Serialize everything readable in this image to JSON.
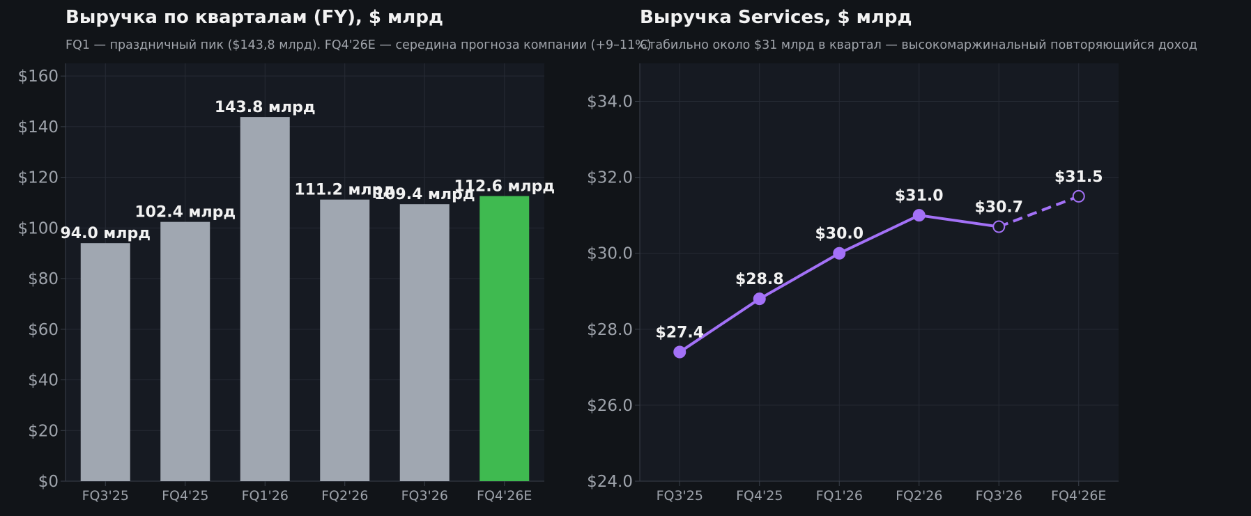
{
  "colors": {
    "background": "#111418",
    "plot_background": "#161a22",
    "grid": "#262b35",
    "axis_text": "#9ea3ab",
    "label_text": "#f2f2f2",
    "bar_default": "#a0a7b1",
    "bar_highlight": "#3fba50",
    "line": "#a371f7"
  },
  "chart_data": [
    {
      "type": "bar",
      "title": "Выручка по кварталам (FY), $ млрд",
      "subtitle": "FQ1 — праздничный пик ($143,8 млрд). FQ4'26E — середина прогноза компании (+9–11%)",
      "categories": [
        "FQ3'25",
        "FQ4'25",
        "FQ1'26",
        "FQ2'26",
        "FQ3'26",
        "FQ4'26E"
      ],
      "values": [
        94.0,
        102.4,
        143.8,
        111.2,
        109.4,
        112.6
      ],
      "data_labels": [
        "94.0 млрд",
        "102.4 млрд",
        "143.8 млрд",
        "111.2 млрд",
        "109.4 млрд",
        "112.6 млрд"
      ],
      "highlight_category": "FQ4'26E",
      "ylim": [
        0,
        165
      ],
      "yticks": [
        0,
        20,
        40,
        60,
        80,
        100,
        120,
        140,
        160
      ],
      "ytick_labels": [
        "$0",
        "$20",
        "$40",
        "$60",
        "$80",
        "$100",
        "$120",
        "$140",
        "$160"
      ],
      "xlabel": "",
      "ylabel": "",
      "grid": true
    },
    {
      "type": "line",
      "title": "Выручка Services, $ млрд",
      "subtitle": "Стабильно около $31 млрд в квартал — высокомаржинальный повторяющийся доход",
      "categories": [
        "FQ3'25",
        "FQ4'25",
        "FQ1'26",
        "FQ2'26",
        "FQ3'26",
        "FQ4'26E"
      ],
      "values": [
        27.4,
        28.8,
        30.0,
        31.0,
        30.7,
        31.5
      ],
      "data_labels": [
        "$27.4",
        "$28.8",
        "$30.0",
        "$31.0",
        "$30.7",
        "$31.5"
      ],
      "solid_through_index": 4,
      "hollow_markers": [
        4,
        5
      ],
      "ylim": [
        24,
        35
      ],
      "yticks": [
        24,
        26,
        28,
        30,
        32,
        34
      ],
      "ytick_labels": [
        "$24.0",
        "$26.0",
        "$28.0",
        "$30.0",
        "$32.0",
        "$34.0"
      ],
      "xlabel": "",
      "ylabel": "",
      "grid": true
    }
  ]
}
